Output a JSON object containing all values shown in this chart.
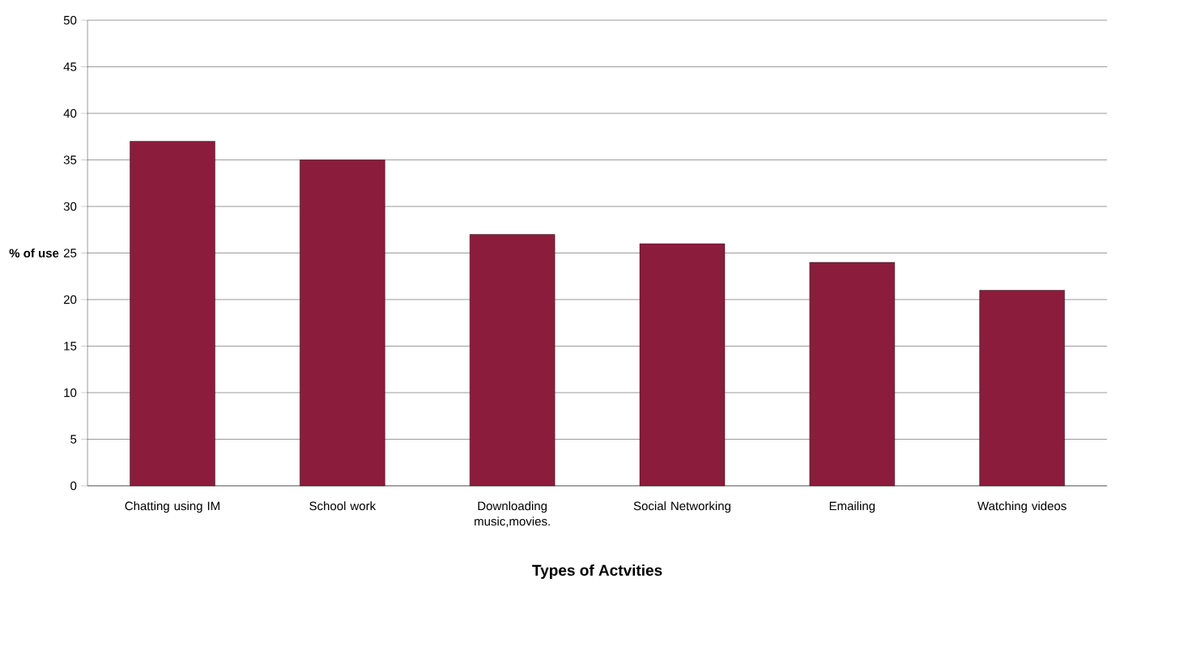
{
  "chart_data": {
    "type": "bar",
    "xlabel": "Types of Actvities",
    "ylabel": "% of use",
    "categories": [
      "Chatting using IM",
      "School work",
      "Downloading music,movies.",
      "Social Networking",
      "Emailing",
      "Watching videos"
    ],
    "values": [
      37,
      35,
      27,
      26,
      24,
      21
    ],
    "color": "#8b1c3c",
    "ylim": [
      0,
      50
    ],
    "yticks": [
      0,
      5,
      10,
      15,
      20,
      25,
      30,
      35,
      40,
      45,
      50
    ],
    "grid": "y"
  }
}
